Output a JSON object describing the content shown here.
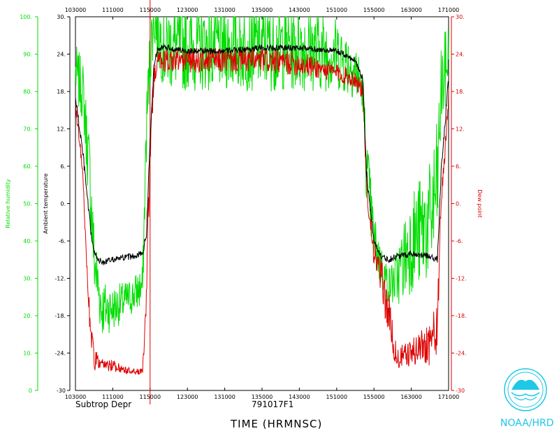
{
  "chart_data": {
    "type": "line",
    "title": "",
    "mission": "Subtrop Depr",
    "flight_id": "791017F1",
    "xlabel": "TIME (HRMNSC)",
    "x_range": [
      "103000",
      "171000"
    ],
    "x_ticks": [
      "103000",
      "111000",
      "115000",
      "123000",
      "131000",
      "135000",
      "143000",
      "151000",
      "155000",
      "163000",
      "171000"
    ],
    "left_axes": [
      {
        "label": "Relative humidity",
        "color": "#00dd00",
        "range": [
          0,
          100
        ],
        "ticks": [
          "0",
          "10.",
          "20.",
          "30.",
          "40.",
          "50.",
          "60.",
          "70.",
          "80.",
          "90.",
          "100."
        ]
      },
      {
        "label": "Ambient temperature",
        "color": "#000000",
        "range": [
          -30,
          30
        ],
        "ticks": [
          "-30",
          "-24.",
          "-18.",
          "-12.",
          "-6.",
          "0.",
          "6.",
          "12.",
          "18.",
          "24.",
          "30."
        ]
      }
    ],
    "right_axis": {
      "label": "Dew point",
      "color": "#dd0000",
      "range": [
        -30,
        30
      ],
      "ticks": [
        "-30",
        "-24.",
        "-18.",
        "-12.",
        "-6.",
        "0.",
        "6.",
        "12.",
        "18.",
        "24.",
        "30."
      ]
    },
    "series": [
      {
        "name": "Relative humidity",
        "color": "#00dd00",
        "axis": "rh",
        "x": [
          0,
          0.02,
          0.04,
          0.05,
          0.07,
          0.1,
          0.15,
          0.18,
          0.19,
          0.2,
          0.21,
          0.22,
          0.24,
          0.3,
          0.4,
          0.5,
          0.6,
          0.7,
          0.75,
          0.77,
          0.78,
          0.8,
          0.82,
          0.84,
          0.86,
          0.9,
          0.95,
          0.97,
          0.98,
          1.0
        ],
        "y": [
          85,
          80,
          55,
          35,
          22,
          22,
          25,
          28,
          70,
          90,
          100,
          96,
          92,
          92,
          92,
          92,
          92,
          90,
          86,
          80,
          60,
          40,
          33,
          28,
          30,
          40,
          45,
          55,
          80,
          90
        ],
        "noise": [
          8,
          8,
          12,
          10,
          8,
          6,
          5,
          6,
          10,
          10,
          8,
          10,
          12,
          12,
          12,
          12,
          12,
          10,
          8,
          6,
          10,
          8,
          6,
          5,
          8,
          14,
          16,
          18,
          12,
          10
        ]
      },
      {
        "name": "Ambient temperature",
        "color": "#000000",
        "axis": "temp",
        "x": [
          0,
          0.02,
          0.04,
          0.05,
          0.07,
          0.1,
          0.15,
          0.18,
          0.19,
          0.2,
          0.21,
          0.22,
          0.24,
          0.3,
          0.4,
          0.5,
          0.6,
          0.7,
          0.75,
          0.77,
          0.78,
          0.8,
          0.82,
          0.84,
          0.86,
          0.9,
          0.95,
          0.97,
          0.98,
          1.0
        ],
        "y": [
          17,
          8,
          -4,
          -8,
          -9.5,
          -9,
          -8.5,
          -8,
          -5,
          10,
          22,
          25,
          25,
          24.5,
          24.5,
          25,
          25,
          24.5,
          23,
          20,
          5,
          -6,
          -8.5,
          -9,
          -8.5,
          -8,
          -8.5,
          -9,
          5,
          20
        ],
        "noise": [
          0.8,
          0.8,
          0.8,
          0.6,
          0.5,
          0.5,
          0.5,
          0.5,
          0.8,
          0.6,
          0.5,
          0.5,
          0.5,
          0.5,
          0.5,
          0.5,
          0.5,
          0.5,
          0.5,
          0.5,
          0.8,
          0.6,
          0.5,
          0.5,
          0.5,
          0.5,
          0.5,
          0.5,
          0.8,
          0.8
        ]
      },
      {
        "name": "Dew point",
        "color": "#dd0000",
        "axis": "temp",
        "x": [
          0,
          0.02,
          0.03,
          0.04,
          0.05,
          0.07,
          0.1,
          0.15,
          0.18,
          0.19,
          0.2,
          0.21,
          0.22,
          0.24,
          0.3,
          0.4,
          0.5,
          0.6,
          0.7,
          0.75,
          0.77,
          0.78,
          0.8,
          0.82,
          0.84,
          0.86,
          0.9,
          0.95,
          0.97,
          0.98,
          1.0
        ],
        "y": [
          16,
          5,
          -10,
          -20,
          -25,
          -26,
          -26,
          -27,
          -27,
          -15,
          8,
          20,
          23,
          23,
          23,
          23,
          23,
          22.5,
          21,
          20,
          18,
          3,
          -8,
          -12,
          -18,
          -25,
          -24,
          -22,
          -20,
          0,
          17
        ],
        "noise": [
          1,
          1,
          2,
          3,
          2,
          1,
          1,
          0.5,
          0.5,
          4,
          3,
          1.5,
          1.5,
          2,
          2,
          2,
          2,
          2,
          1.5,
          1.5,
          1.5,
          2,
          2,
          3,
          4,
          2,
          2,
          4,
          4,
          2,
          1.5
        ]
      }
    ],
    "event_marker_x": "113000"
  },
  "org": "NOAA/HRD",
  "logo_text": "NOAA"
}
